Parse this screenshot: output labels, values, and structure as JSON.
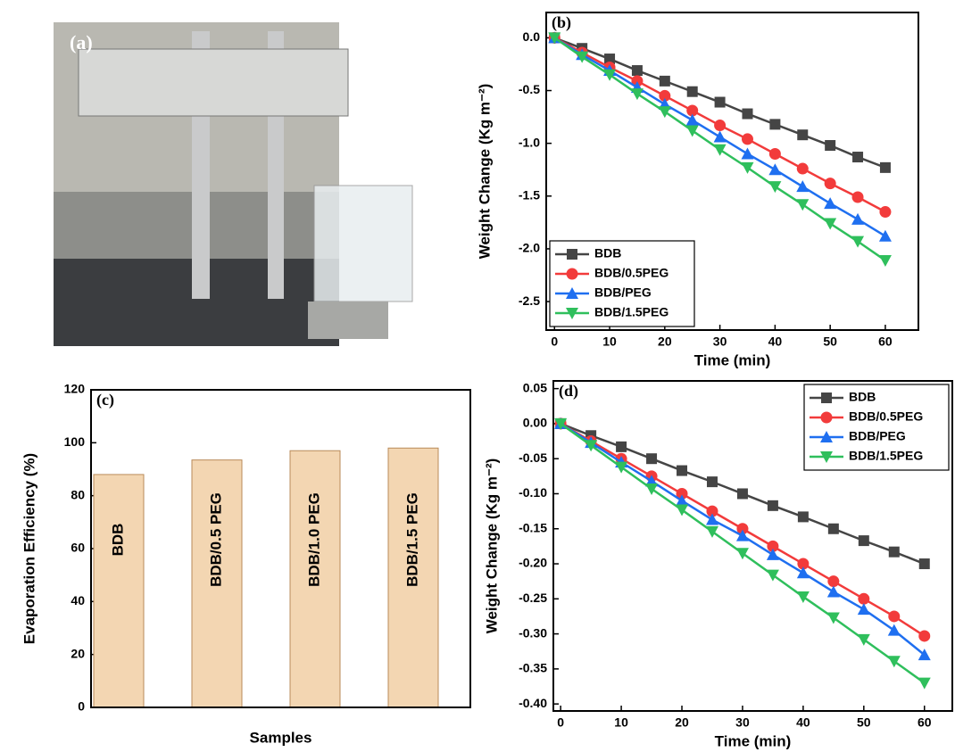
{
  "photo": {
    "label": "(a)"
  },
  "chart_data": [
    {
      "type": "line",
      "panel_label": "(b)",
      "xlabel": "Time (min)",
      "ylabel": "Weight Change (Kg m⁻²)",
      "x": [
        0,
        5,
        10,
        15,
        20,
        25,
        30,
        35,
        40,
        45,
        50,
        55,
        60
      ],
      "xlim": [
        -1.5,
        66
      ],
      "xticks": [
        0,
        10,
        20,
        30,
        40,
        50,
        60
      ],
      "ylim": [
        -2.77,
        0.24
      ],
      "yticks": [
        {
          "value": 0,
          "label": "0.0"
        },
        -0.5,
        {
          "value": -1,
          "label": "-1.0"
        },
        -1.5,
        {
          "value": -2,
          "label": "-2.0"
        },
        -2.5
      ],
      "legend": "lower left",
      "series": [
        {
          "name": "BDB",
          "color": "#454545",
          "marker": "square",
          "values": [
            0,
            -0.1,
            -0.2,
            -0.31,
            -0.41,
            -0.51,
            -0.61,
            -0.72,
            -0.82,
            -0.92,
            -1.02,
            -1.13,
            -1.23
          ]
        },
        {
          "name": "BDB/0.5PEG",
          "color": "#f23b3b",
          "marker": "circle",
          "values": [
            0,
            -0.14,
            -0.28,
            -0.41,
            -0.55,
            -0.69,
            -0.83,
            -0.96,
            -1.1,
            -1.24,
            -1.38,
            -1.51,
            -1.65
          ]
        },
        {
          "name": "BDB/PEG",
          "color": "#1f6ff0",
          "marker": "triangle-up",
          "values": [
            0,
            -0.16,
            -0.31,
            -0.47,
            -0.63,
            -0.78,
            -0.94,
            -1.1,
            -1.25,
            -1.41,
            -1.57,
            -1.72,
            -1.88
          ]
        },
        {
          "name": "BDB/1.5PEG",
          "color": "#2fbf5c",
          "marker": "triangle-down",
          "values": [
            0,
            -0.18,
            -0.35,
            -0.53,
            -0.7,
            -0.88,
            -1.06,
            -1.23,
            -1.41,
            -1.58,
            -1.76,
            -1.93,
            -2.11
          ]
        }
      ]
    },
    {
      "type": "bar",
      "panel_label": "(c)",
      "xlabel": "Samples",
      "ylabel": "Evaporation Efficiency (%)",
      "categories": [
        "BDB",
        "BDB/0.5 PEG",
        "BDB/1.0 PEG",
        "BDB/1.5 PEG"
      ],
      "values": [
        88,
        93.5,
        97,
        98
      ],
      "color": "#f3d6b2",
      "ylim": [
        0,
        120
      ],
      "yticks": [
        0,
        20,
        40,
        60,
        80,
        100,
        120
      ]
    },
    {
      "type": "line",
      "panel_label": "(d)",
      "xlabel": "Time (min)",
      "ylabel": "Weight Change (Kg m⁻²)",
      "x": [
        0,
        5,
        10,
        15,
        20,
        25,
        30,
        35,
        40,
        45,
        50,
        55,
        60
      ],
      "xlim": [
        -1.2,
        64.6
      ],
      "xticks": [
        0,
        10,
        20,
        30,
        40,
        50,
        60
      ],
      "ylim": [
        -0.41,
        0.061
      ],
      "yticks": [
        0.05,
        {
          "value": 0,
          "label": "0.00"
        },
        -0.05,
        {
          "value": -0.1,
          "label": "-0.10"
        },
        -0.15,
        {
          "value": -0.2,
          "label": "-0.20"
        },
        -0.25,
        {
          "value": -0.3,
          "label": "-0.30"
        },
        -0.35,
        {
          "value": -0.4,
          "label": "-0.40"
        }
      ],
      "legend": "upper right",
      "series": [
        {
          "name": "BDB",
          "color": "#454545",
          "marker": "square",
          "values": [
            0,
            -0.017,
            -0.033,
            -0.05,
            -0.067,
            -0.083,
            -0.1,
            -0.117,
            -0.133,
            -0.15,
            -0.167,
            -0.183,
            -0.2
          ]
        },
        {
          "name": "BDB/0.5PEG",
          "color": "#f23b3b",
          "marker": "circle",
          "values": [
            0,
            -0.025,
            -0.05,
            -0.075,
            -0.1,
            -0.125,
            -0.15,
            -0.175,
            -0.2,
            -0.225,
            -0.25,
            -0.275,
            -0.303
          ]
        },
        {
          "name": "BDB/PEG",
          "color": "#1f6ff0",
          "marker": "triangle-up",
          "values": [
            0,
            -0.027,
            -0.055,
            -0.082,
            -0.11,
            -0.137,
            -0.16,
            -0.187,
            -0.213,
            -0.24,
            -0.265,
            -0.295,
            -0.33
          ]
        },
        {
          "name": "BDB/1.5PEG",
          "color": "#2fbf5c",
          "marker": "triangle-down",
          "values": [
            0,
            -0.031,
            -0.062,
            -0.093,
            -0.123,
            -0.154,
            -0.185,
            -0.216,
            -0.247,
            -0.277,
            -0.308,
            -0.339,
            -0.37
          ]
        }
      ]
    }
  ]
}
